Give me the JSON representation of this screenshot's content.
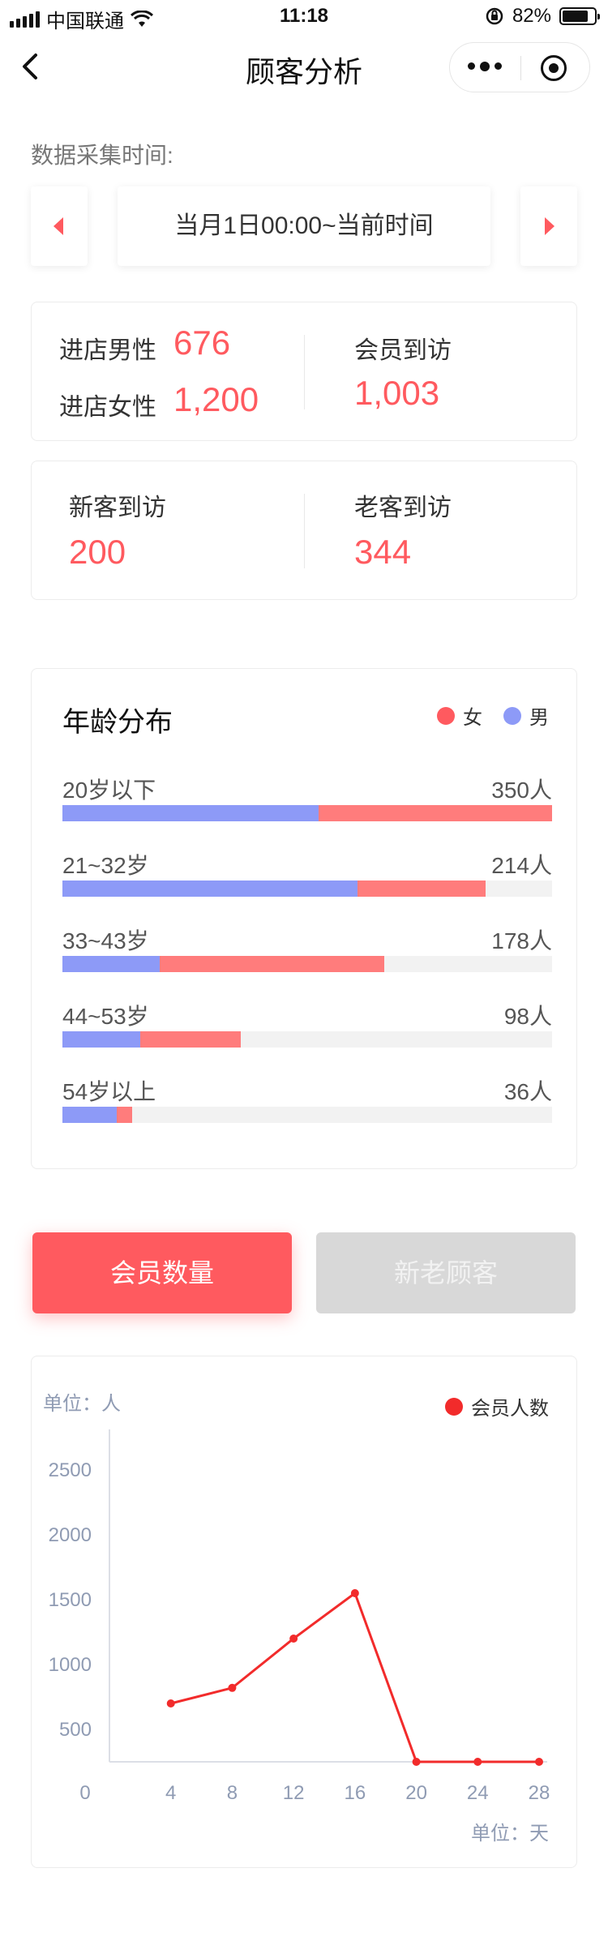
{
  "status_bar": {
    "carrier": "中国联通",
    "time": "11:18",
    "battery": "82%",
    "battery_level": 0.82
  },
  "nav": {
    "title": "顾客分析"
  },
  "collection": {
    "label": "数据采集时间:",
    "range": "当月1日00:00~当前时间"
  },
  "stats": {
    "male_label": "进店男性",
    "male_value": "676",
    "female_label": "进店女性",
    "female_value": "1,200",
    "member_label": "会员到访",
    "member_value": "1,003",
    "new_label": "新客到访",
    "new_value": "200",
    "old_label": "老客到访",
    "old_value": "344"
  },
  "age": {
    "title": "年龄分布",
    "legend_female": "女",
    "legend_male": "男",
    "colors": {
      "female": "#ff7c7c",
      "male": "#8d9af7"
    },
    "rows": [
      {
        "label": "20岁以下",
        "count": "350人",
        "male_pct": 52.4,
        "female_pct": 47.6
      },
      {
        "label": "21~32岁",
        "count": "214人",
        "male_pct": 60.3,
        "female_pct": 26.2
      },
      {
        "label": "33~43岁",
        "count": "178人",
        "male_pct": 19.8,
        "female_pct": 46.0
      },
      {
        "label": "44~53岁",
        "count": "98人",
        "male_pct": 15.9,
        "female_pct": 20.6
      },
      {
        "label": "54岁以上",
        "count": "36人",
        "male_pct": 11.1,
        "female_pct": 3.2
      }
    ]
  },
  "tabs": {
    "active": "会员数量",
    "inactive": "新老顾客"
  },
  "chart_data": {
    "type": "line",
    "y_unit_label": "单位：人",
    "x_unit_label": "单位：天",
    "legend": "会员人数",
    "color": "#f22b2b",
    "x_ticks": [
      0,
      4,
      8,
      12,
      16,
      20,
      24,
      28
    ],
    "y_ticks": [
      500,
      1000,
      1500,
      2000,
      2500
    ],
    "xlim": [
      0,
      28
    ],
    "ylim": [
      250,
      2750
    ],
    "series": [
      {
        "name": "会员人数",
        "x": [
          4,
          8,
          12,
          16,
          20,
          24,
          28
        ],
        "y": [
          700,
          820,
          1200,
          1550,
          250,
          250,
          250
        ]
      }
    ]
  }
}
